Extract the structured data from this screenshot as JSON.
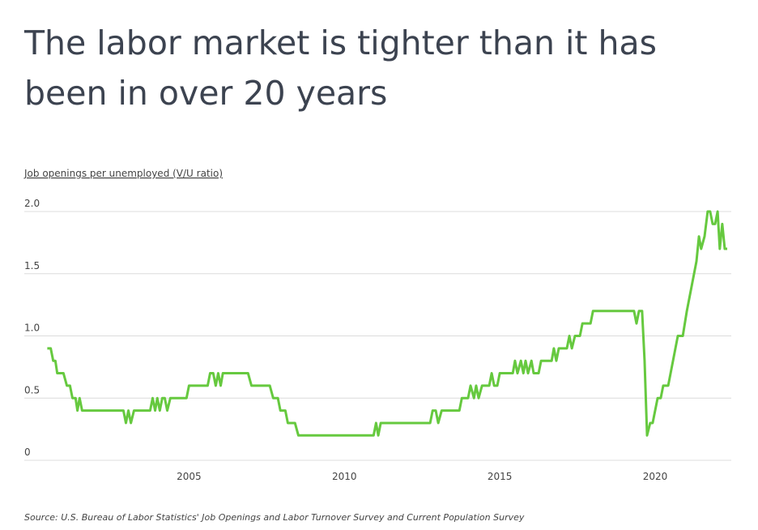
{
  "chart_data": {
    "type": "line",
    "title": "The labor market is tighter than it has been in over 20 years",
    "y_label": "Job openings per unemployed (V/U ratio)",
    "source": "Source: U.S. Bureau of Labor Statistics' Job Openings and Labor Turnover Survey and Current Population Survey",
    "color": "#66c93f",
    "grid": true,
    "xlim": [
      1999.7,
      2022.45
    ],
    "xticks": [
      2005,
      2010,
      2015,
      2020
    ],
    "ylim": [
      0,
      2
    ],
    "yticks": [
      0,
      0.5,
      {
        "value": 1,
        "label": "1.0"
      },
      1.5,
      {
        "value": 2,
        "label": "2.0"
      }
    ],
    "x": [
      2000.44,
      2000.55,
      2000.63,
      2000.7,
      2000.76,
      2000.96,
      2001.07,
      2001.17,
      2001.25,
      2001.35,
      2001.41,
      2001.48,
      2001.56,
      2002.89,
      2002.97,
      2003.05,
      2003.13,
      2003.23,
      2003.75,
      2003.83,
      2003.91,
      2003.98,
      2004.06,
      2004.14,
      2004.22,
      2004.3,
      2004.4,
      2004.92,
      2005.0,
      2005.6,
      2005.68,
      2005.78,
      2005.86,
      2005.94,
      2006.02,
      2006.09,
      2006.9,
      2007.01,
      2007.6,
      2007.71,
      2007.86,
      2007.94,
      2008.1,
      2008.18,
      2008.41,
      2008.52,
      2010.94,
      2011.02,
      2011.09,
      2011.17,
      2012.76,
      2012.84,
      2012.94,
      2013.02,
      2013.13,
      2013.7,
      2013.78,
      2013.98,
      2014.06,
      2014.17,
      2014.24,
      2014.32,
      2014.43,
      2014.66,
      2014.74,
      2014.82,
      2014.92,
      2015.0,
      2015.42,
      2015.49,
      2015.57,
      2015.68,
      2015.76,
      2015.83,
      2015.91,
      2016.02,
      2016.09,
      2016.25,
      2016.33,
      2016.67,
      2016.74,
      2016.82,
      2016.9,
      2017.16,
      2017.24,
      2017.32,
      2017.42,
      2017.58,
      2017.66,
      2017.92,
      2018.0,
      2019.32,
      2019.4,
      2019.48,
      2019.58,
      2019.66,
      2019.74,
      2019.84,
      2019.92,
      2020.08,
      2020.18,
      2020.26,
      2020.42,
      2020.73,
      2020.89,
      2021.02,
      2021.33,
      2021.41,
      2021.48,
      2021.59,
      2021.69,
      2021.77,
      2021.85,
      2021.93,
      2022.01,
      2022.08,
      2022.16,
      2022.24,
      2022.32
    ],
    "values": [
      0.9,
      0.9,
      0.8,
      0.8,
      0.7,
      0.7,
      0.6,
      0.6,
      0.5,
      0.5,
      0.4,
      0.5,
      0.4,
      0.4,
      0.3,
      0.4,
      0.3,
      0.4,
      0.4,
      0.5,
      0.4,
      0.5,
      0.4,
      0.5,
      0.5,
      0.4,
      0.5,
      0.5,
      0.6,
      0.6,
      0.7,
      0.7,
      0.6,
      0.7,
      0.6,
      0.7,
      0.7,
      0.6,
      0.6,
      0.5,
      0.5,
      0.4,
      0.4,
      0.3,
      0.3,
      0.2,
      0.2,
      0.3,
      0.2,
      0.3,
      0.3,
      0.4,
      0.4,
      0.3,
      0.4,
      0.4,
      0.5,
      0.5,
      0.6,
      0.5,
      0.6,
      0.5,
      0.6,
      0.6,
      0.7,
      0.6,
      0.6,
      0.7,
      0.7,
      0.8,
      0.7,
      0.8,
      0.7,
      0.8,
      0.7,
      0.8,
      0.7,
      0.7,
      0.8,
      0.8,
      0.9,
      0.8,
      0.9,
      0.9,
      1.0,
      0.9,
      1.0,
      1.0,
      1.1,
      1.1,
      1.2,
      1.2,
      1.1,
      1.2,
      1.2,
      0.8,
      0.2,
      0.3,
      0.3,
      0.5,
      0.5,
      0.6,
      0.6,
      1.0,
      1.0,
      1.2,
      1.6,
      1.8,
      1.7,
      1.8,
      2.0,
      2.0,
      1.9,
      1.9,
      2.0,
      1.7,
      1.9,
      1.7,
      1.7
    ]
  }
}
